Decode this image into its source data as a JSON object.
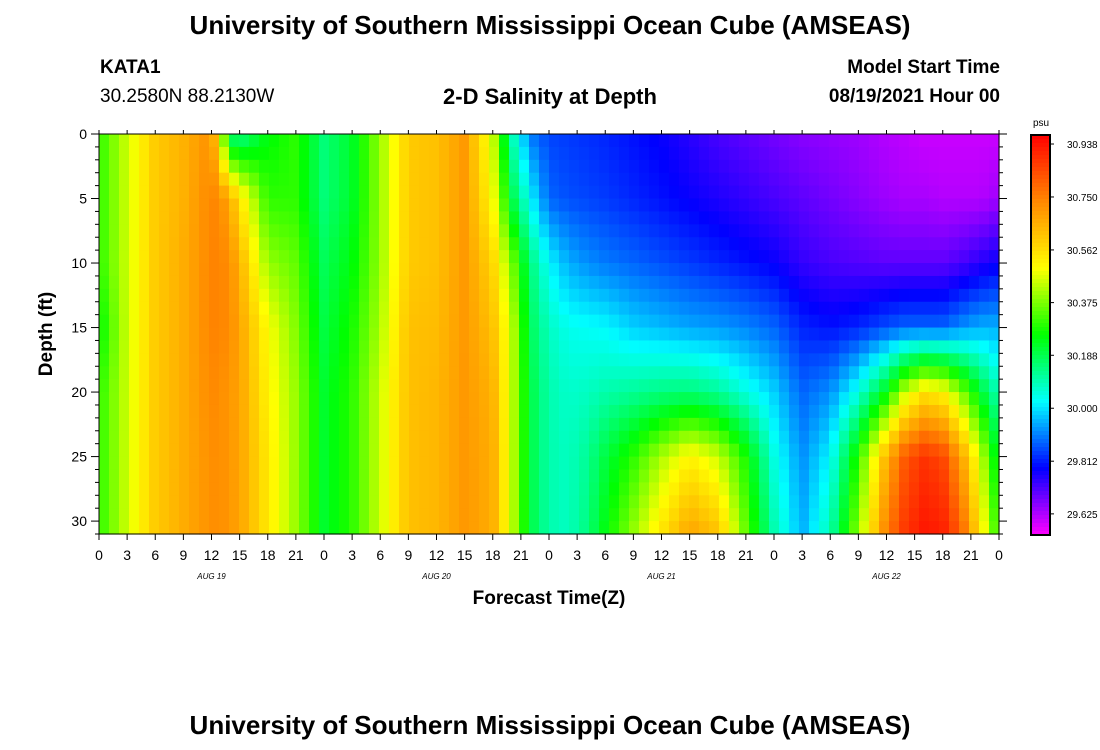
{
  "header": {
    "title": "University of Southern Mississippi Ocean Cube (AMSEAS)",
    "station": "KATA1",
    "coords": "30.2580N  88.2130W",
    "subtitle": "2-D Salinity at Depth",
    "model_start_label": "Model Start Time",
    "model_start_value": "08/19/2021 Hour 00"
  },
  "footer": {
    "title": "University of Southern Mississippi Ocean Cube (AMSEAS)"
  },
  "chart_data": {
    "type": "heatmap",
    "xlabel": "Forecast Time(Z)",
    "ylabel": "Depth (ft)",
    "units": "psu",
    "x_hours_range": [
      0,
      96
    ],
    "x_tick_labels": [
      "0",
      "3",
      "6",
      "9",
      "12",
      "15",
      "18",
      "21",
      "0",
      "3",
      "6",
      "9",
      "12",
      "15",
      "18",
      "21",
      "0",
      "3",
      "6",
      "9",
      "12",
      "15",
      "18",
      "21",
      "0",
      "3",
      "6",
      "9",
      "12",
      "15",
      "18",
      "21",
      "0"
    ],
    "day_labels": [
      "AUG 19",
      "AUG 20",
      "AUG 21",
      "AUG 22"
    ],
    "ylim": [
      0,
      31
    ],
    "y_ticks": [
      0,
      5,
      10,
      15,
      20,
      25,
      30
    ],
    "y_tick_labels": [
      "0",
      "5",
      "10",
      "15",
      "20",
      "25",
      "30"
    ],
    "colorbar_ticks": [
      "30.938",
      "30.750",
      "30.562",
      "30.375",
      "30.188",
      "30.000",
      "29.812",
      "29.625"
    ],
    "colorbar_range": [
      29.55,
      30.97
    ],
    "colors": [
      "#ff00ff",
      "#0000ff",
      "#00ffff",
      "#00ff00",
      "#ffff00",
      "#ff8800",
      "#ff0000"
    ],
    "salinity_profiles": {
      "hours": [
        0,
        3,
        6,
        9,
        12,
        13,
        14,
        15,
        18,
        21,
        24,
        27,
        30,
        33,
        36,
        39,
        42,
        44,
        46,
        48,
        50,
        52,
        54,
        57,
        60,
        63,
        66,
        69,
        72,
        75,
        78,
        81,
        84,
        86,
        88,
        90,
        92,
        94,
        96
      ],
      "depths": [
        0,
        5,
        10,
        15,
        20,
        25,
        31
      ],
      "values": [
        [
          30.3,
          30.3,
          30.3,
          30.25,
          30.3,
          30.3,
          30.3
        ],
        [
          30.45,
          30.45,
          30.45,
          30.45,
          30.45,
          30.45,
          30.45
        ],
        [
          30.6,
          30.6,
          30.6,
          30.6,
          30.6,
          30.6,
          30.6
        ],
        [
          30.65,
          30.65,
          30.66,
          30.66,
          30.66,
          30.66,
          30.66
        ],
        [
          30.72,
          30.74,
          30.74,
          30.74,
          30.73,
          30.72,
          30.72
        ],
        [
          30.45,
          30.72,
          30.74,
          30.74,
          30.72,
          30.72,
          30.72
        ],
        [
          30.15,
          30.66,
          30.72,
          30.72,
          30.7,
          30.7,
          30.7
        ],
        [
          30.12,
          30.55,
          30.65,
          30.68,
          30.68,
          30.68,
          30.68
        ],
        [
          30.25,
          30.3,
          30.4,
          30.5,
          30.52,
          30.54,
          30.54
        ],
        [
          30.3,
          30.3,
          30.35,
          30.38,
          30.4,
          30.4,
          30.4
        ],
        [
          30.15,
          30.15,
          30.18,
          30.2,
          30.22,
          30.22,
          30.22
        ],
        [
          30.22,
          30.22,
          30.25,
          30.28,
          30.3,
          30.3,
          30.3
        ],
        [
          30.4,
          30.4,
          30.4,
          30.42,
          30.45,
          30.45,
          30.45
        ],
        [
          30.6,
          30.6,
          30.6,
          30.62,
          30.62,
          30.62,
          30.62
        ],
        [
          30.62,
          30.62,
          30.62,
          30.63,
          30.64,
          30.64,
          30.64
        ],
        [
          30.7,
          30.7,
          30.7,
          30.7,
          30.7,
          30.7,
          30.7
        ],
        [
          30.45,
          30.5,
          30.58,
          30.62,
          30.65,
          30.66,
          30.66
        ],
        [
          30.1,
          30.2,
          30.38,
          30.45,
          30.45,
          30.45,
          30.45
        ],
        [
          29.9,
          30.02,
          30.15,
          30.18,
          30.2,
          30.2,
          30.2
        ],
        [
          29.85,
          29.88,
          30.02,
          30.08,
          30.1,
          30.1,
          30.1
        ],
        [
          29.84,
          29.86,
          29.95,
          30.04,
          30.07,
          30.08,
          30.08
        ],
        [
          29.83,
          29.85,
          29.92,
          30.03,
          30.08,
          30.12,
          30.14
        ],
        [
          29.82,
          29.84,
          29.9,
          30.02,
          30.1,
          30.2,
          30.25
        ],
        [
          29.8,
          29.82,
          29.88,
          29.98,
          30.12,
          30.3,
          30.4
        ],
        [
          29.78,
          29.8,
          29.86,
          29.96,
          30.14,
          30.42,
          30.55
        ],
        [
          29.75,
          29.78,
          29.84,
          29.94,
          30.15,
          30.52,
          30.68
        ],
        [
          29.72,
          29.76,
          29.82,
          29.93,
          30.12,
          30.45,
          30.62
        ],
        [
          29.7,
          29.74,
          29.8,
          29.91,
          30.05,
          30.28,
          30.35
        ],
        [
          29.68,
          29.72,
          29.78,
          29.88,
          29.98,
          30.05,
          30.1
        ],
        [
          29.66,
          29.7,
          29.74,
          29.82,
          29.88,
          29.92,
          29.95
        ],
        [
          29.65,
          29.68,
          29.72,
          29.8,
          29.92,
          30.02,
          30.1
        ],
        [
          29.64,
          29.66,
          29.71,
          29.82,
          30.05,
          30.3,
          30.4
        ],
        [
          29.62,
          29.64,
          29.7,
          29.86,
          30.25,
          30.65,
          30.75
        ],
        [
          29.61,
          29.63,
          29.7,
          29.88,
          30.45,
          30.82,
          30.88
        ],
        [
          29.6,
          29.63,
          29.7,
          29.88,
          30.55,
          30.88,
          30.93
        ],
        [
          29.6,
          29.62,
          29.7,
          29.88,
          30.52,
          30.85,
          30.92
        ],
        [
          29.6,
          29.62,
          29.72,
          29.92,
          30.38,
          30.68,
          30.8
        ],
        [
          29.6,
          29.62,
          29.75,
          29.95,
          30.22,
          30.45,
          30.55
        ],
        [
          29.6,
          29.64,
          29.78,
          29.95,
          30.08,
          30.2,
          30.28
        ]
      ]
    }
  }
}
